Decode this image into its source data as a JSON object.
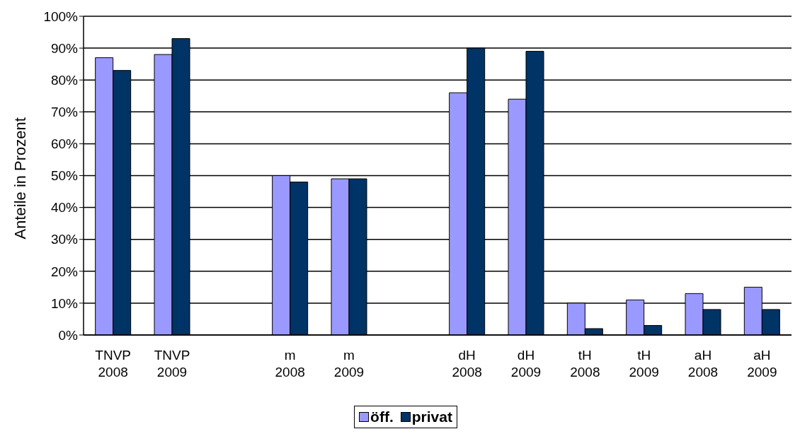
{
  "chart_data": {
    "type": "bar",
    "ylabel": "Anteile in Prozent",
    "categories": [
      "TNVP 2008",
      "TNVP 2009",
      null,
      "m 2008",
      "m 2009",
      null,
      "dH 2008",
      "dH 2009",
      "tH 2008",
      "tH 2009",
      "aH 2008",
      "aH 2009"
    ],
    "series": [
      {
        "name": "öff.",
        "color": "#9999ff",
        "values": [
          87,
          88,
          null,
          50,
          49,
          null,
          76,
          74,
          10,
          11,
          13,
          15
        ]
      },
      {
        "name": "privat",
        "color": "#003366",
        "values": [
          83,
          93,
          null,
          48,
          49,
          null,
          90,
          89,
          2,
          3,
          8,
          8
        ]
      }
    ],
    "ylim": [
      0,
      100
    ],
    "yticks": [
      {
        "value": 0,
        "label": "0%"
      },
      {
        "value": 10,
        "label": "10%"
      },
      {
        "value": 20,
        "label": "20%"
      },
      {
        "value": 30,
        "label": "30%"
      },
      {
        "value": 40,
        "label": "40%"
      },
      {
        "value": 50,
        "label": "50%"
      },
      {
        "value": 60,
        "label": "60%"
      },
      {
        "value": 70,
        "label": "70%"
      },
      {
        "value": 80,
        "label": "80%"
      },
      {
        "value": 90,
        "label": "90%"
      },
      {
        "value": 100,
        "label": "100%"
      }
    ],
    "grid": "y",
    "legend": "bottom"
  }
}
